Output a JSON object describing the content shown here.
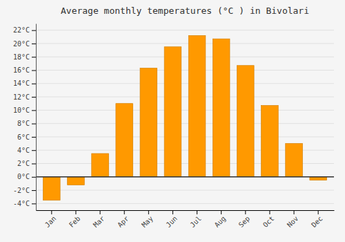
{
  "chart_data": {
    "type": "bar",
    "title": "Average monthly temperatures (°C ) in Bivolari",
    "categories": [
      "Jan",
      "Feb",
      "Mar",
      "Apr",
      "May",
      "Jun",
      "Jul",
      "Aug",
      "Sep",
      "Oct",
      "Nov",
      "Dec"
    ],
    "values": [
      -3.5,
      -1.2,
      3.5,
      11.0,
      16.3,
      19.5,
      21.2,
      20.7,
      16.7,
      10.7,
      5.0,
      -0.5
    ],
    "color": "#FF9900",
    "ylim": [
      -5,
      23
    ],
    "yticks": [
      {
        "value": -4,
        "label": "-4°C"
      },
      {
        "value": -2,
        "label": "-2°C"
      },
      {
        "value": 0,
        "label": "0°C"
      },
      {
        "value": 2,
        "label": "2°C"
      },
      {
        "value": 4,
        "label": "4°C"
      },
      {
        "value": 6,
        "label": "6°C"
      },
      {
        "value": 8,
        "label": "8°C"
      },
      {
        "value": 10,
        "label": "10°C"
      },
      {
        "value": 12,
        "label": "12°C"
      },
      {
        "value": 14,
        "label": "14°C"
      },
      {
        "value": 16,
        "label": "16°C"
      },
      {
        "value": 18,
        "label": "18°C"
      },
      {
        "value": 20,
        "label": "20°C"
      },
      {
        "value": 22,
        "label": "22°C"
      }
    ],
    "grid": true
  }
}
